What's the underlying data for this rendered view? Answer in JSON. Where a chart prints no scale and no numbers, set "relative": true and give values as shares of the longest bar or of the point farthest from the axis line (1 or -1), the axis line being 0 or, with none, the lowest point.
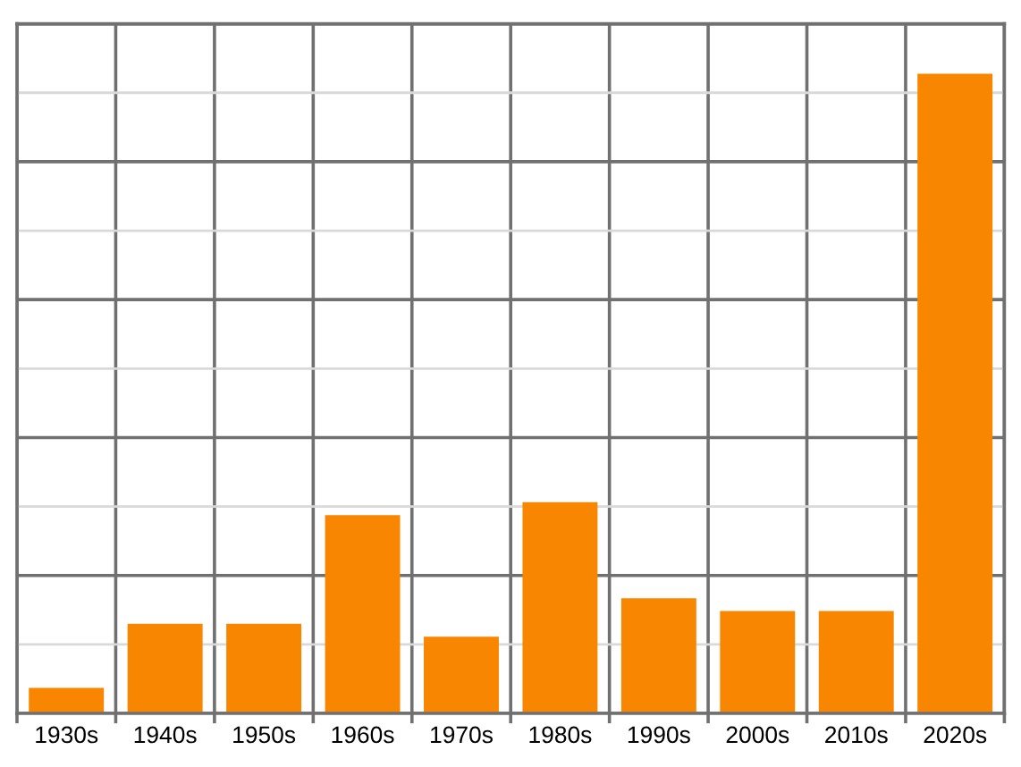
{
  "chart_data": {
    "type": "bar",
    "relative": true,
    "grid": true,
    "color": "#f88600",
    "categories": [
      "1930s",
      "1940s",
      "1950s",
      "1960s",
      "1970s",
      "1980s",
      "1990s",
      "2000s",
      "2010s",
      "2020s"
    ],
    "values": [
      0.04,
      0.14,
      0.14,
      0.31,
      0.12,
      0.33,
      0.18,
      0.16,
      0.16,
      1
    ]
  }
}
